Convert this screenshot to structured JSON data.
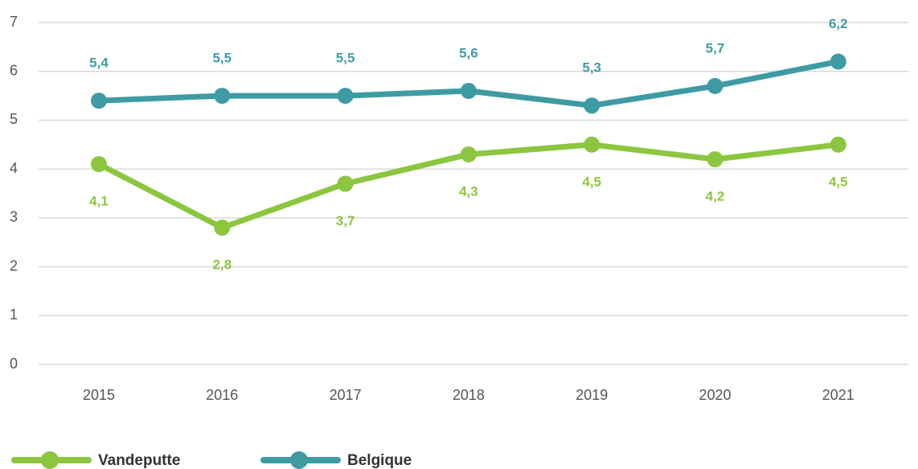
{
  "chart_data": {
    "type": "line",
    "categories": [
      "2015",
      "2016",
      "2017",
      "2018",
      "2019",
      "2020",
      "2021"
    ],
    "series": [
      {
        "name": "Vandeputte",
        "color": "#8cc63f",
        "values": [
          4.1,
          2.8,
          3.7,
          4.3,
          4.5,
          4.2,
          4.5
        ],
        "value_labels": [
          "4,1",
          "2,8",
          "3,7",
          "4,3",
          "4,5",
          "4,2",
          "4,5"
        ]
      },
      {
        "name": "Belgique",
        "color": "#3e9ba4",
        "values": [
          5.4,
          5.5,
          5.5,
          5.6,
          5.3,
          5.7,
          6.2
        ],
        "value_labels": [
          "5,4",
          "5,5",
          "5,5",
          "5,6",
          "5,3",
          "5,7",
          "6,2"
        ]
      }
    ],
    "ylim": [
      0,
      7
    ],
    "yticks": [
      0,
      1,
      2,
      3,
      4,
      5,
      6,
      7
    ],
    "grid": true,
    "legend": "bottom-left"
  }
}
